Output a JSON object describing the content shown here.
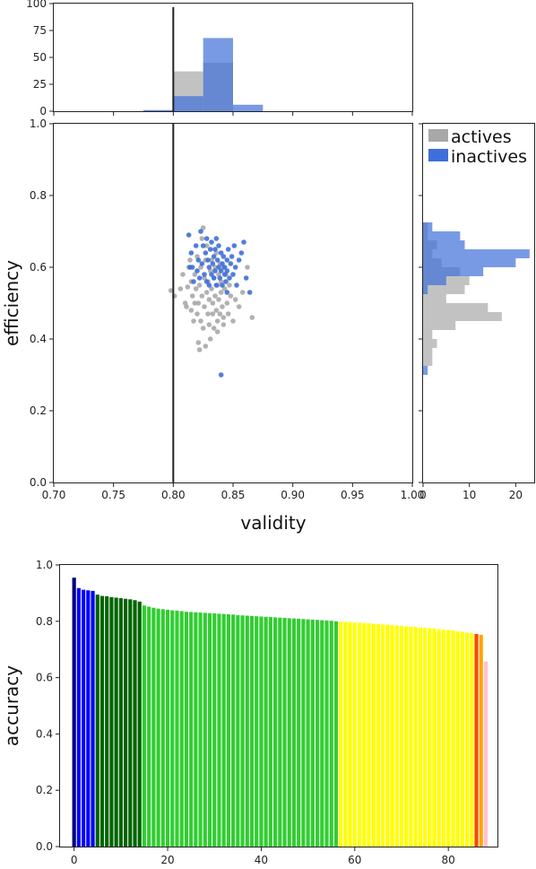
{
  "chart_data": [
    {
      "panel": "joint-scatter",
      "type": "scatter",
      "xlabel": "validity",
      "ylabel": "efficiency",
      "xlim": [
        0.7,
        1.0
      ],
      "ylim": [
        0.0,
        1.0
      ],
      "xticks": [
        "0.70",
        "0.75",
        "0.80",
        "0.85",
        "0.90",
        "0.95",
        "1.00"
      ],
      "yticks": [
        "0.0",
        "0.2",
        "0.4",
        "0.6",
        "0.8",
        "1.0"
      ],
      "vline_x": 0.8,
      "legend": {
        "placement": "top-right",
        "entries": [
          "actives",
          "inactives"
        ]
      },
      "series": [
        {
          "name": "actives",
          "color": "#a8a8a8",
          "points": [
            [
              0.798,
              0.535
            ],
            [
              0.801,
              0.52
            ],
            [
              0.806,
              0.54
            ],
            [
              0.808,
              0.58
            ],
            [
              0.81,
              0.5
            ],
            [
              0.811,
              0.49
            ],
            [
              0.812,
              0.545
            ],
            [
              0.813,
              0.6
            ],
            [
              0.814,
              0.62
            ],
            [
              0.815,
              0.48
            ],
            [
              0.815,
              0.56
            ],
            [
              0.816,
              0.52
            ],
            [
              0.817,
              0.45
            ],
            [
              0.818,
              0.5
            ],
            [
              0.818,
              0.58
            ],
            [
              0.819,
              0.54
            ],
            [
              0.82,
              0.63
            ],
            [
              0.82,
              0.47
            ],
            [
              0.821,
              0.39
            ],
            [
              0.821,
              0.5
            ],
            [
              0.822,
              0.37
            ],
            [
              0.822,
              0.55
            ],
            [
              0.823,
              0.45
            ],
            [
              0.823,
              0.6
            ],
            [
              0.824,
              0.52
            ],
            [
              0.824,
              0.68
            ],
            [
              0.825,
              0.71
            ],
            [
              0.825,
              0.43
            ],
            [
              0.826,
              0.57
            ],
            [
              0.826,
              0.49
            ],
            [
              0.827,
              0.62
            ],
            [
              0.827,
              0.38
            ],
            [
              0.828,
              0.53
            ],
            [
              0.828,
              0.66
            ],
            [
              0.829,
              0.47
            ],
            [
              0.829,
              0.56
            ],
            [
              0.83,
              0.44
            ],
            [
              0.83,
              0.51
            ],
            [
              0.831,
              0.59
            ],
            [
              0.831,
              0.4
            ],
            [
              0.832,
              0.54
            ],
            [
              0.832,
              0.62
            ],
            [
              0.833,
              0.47
            ],
            [
              0.833,
              0.5
            ],
            [
              0.834,
              0.57
            ],
            [
              0.834,
              0.43
            ],
            [
              0.835,
              0.6
            ],
            [
              0.835,
              0.52
            ],
            [
              0.836,
              0.48
            ],
            [
              0.836,
              0.64
            ],
            [
              0.837,
              0.55
            ],
            [
              0.837,
              0.45
            ],
            [
              0.838,
              0.58
            ],
            [
              0.838,
              0.51
            ],
            [
              0.839,
              0.61
            ],
            [
              0.839,
              0.47
            ],
            [
              0.84,
              0.53
            ],
            [
              0.84,
              0.56
            ],
            [
              0.841,
              0.49
            ],
            [
              0.842,
              0.6
            ],
            [
              0.842,
              0.46
            ],
            [
              0.843,
              0.54
            ],
            [
              0.844,
              0.58
            ],
            [
              0.845,
              0.5
            ],
            [
              0.846,
              0.47
            ],
            [
              0.847,
              0.55
            ],
            [
              0.848,
              0.52
            ],
            [
              0.85,
              0.45
            ],
            [
              0.852,
              0.51
            ],
            [
              0.855,
              0.49
            ],
            [
              0.858,
              0.53
            ],
            [
              0.862,
              0.6
            ],
            [
              0.866,
              0.46
            ],
            [
              0.842,
              0.44
            ],
            [
              0.837,
              0.42
            ]
          ]
        },
        {
          "name": "inactives",
          "color": "#3f6fd8",
          "points": [
            [
              0.813,
              0.69
            ],
            [
              0.814,
              0.6
            ],
            [
              0.815,
              0.64
            ],
            [
              0.816,
              0.6
            ],
            [
              0.817,
              0.56
            ],
            [
              0.819,
              0.66
            ],
            [
              0.82,
              0.59
            ],
            [
              0.821,
              0.62
            ],
            [
              0.822,
              0.57
            ],
            [
              0.823,
              0.7
            ],
            [
              0.824,
              0.61
            ],
            [
              0.825,
              0.66
            ],
            [
              0.826,
              0.58
            ],
            [
              0.827,
              0.64
            ],
            [
              0.828,
              0.68
            ],
            [
              0.828,
              0.56
            ],
            [
              0.829,
              0.62
            ],
            [
              0.83,
              0.6
            ],
            [
              0.831,
              0.65
            ],
            [
              0.832,
              0.58
            ],
            [
              0.832,
              0.67
            ],
            [
              0.833,
              0.61
            ],
            [
              0.834,
              0.57
            ],
            [
              0.834,
              0.63
            ],
            [
              0.835,
              0.59
            ],
            [
              0.836,
              0.68
            ],
            [
              0.836,
              0.55
            ],
            [
              0.837,
              0.62
            ],
            [
              0.838,
              0.6
            ],
            [
              0.838,
              0.66
            ],
            [
              0.839,
              0.57
            ],
            [
              0.84,
              0.64
            ],
            [
              0.84,
              0.59
            ],
            [
              0.841,
              0.61
            ],
            [
              0.841,
              0.55
            ],
            [
              0.842,
              0.63
            ],
            [
              0.843,
              0.58
            ],
            [
              0.843,
              0.6
            ],
            [
              0.844,
              0.56
            ],
            [
              0.845,
              0.62
            ],
            [
              0.845,
              0.59
            ],
            [
              0.846,
              0.65
            ],
            [
              0.847,
              0.57
            ],
            [
              0.848,
              0.61
            ],
            [
              0.849,
              0.63
            ],
            [
              0.85,
              0.58
            ],
            [
              0.851,
              0.66
            ],
            [
              0.852,
              0.6
            ],
            [
              0.853,
              0.55
            ],
            [
              0.855,
              0.62
            ],
            [
              0.857,
              0.64
            ],
            [
              0.859,
              0.67
            ],
            [
              0.861,
              0.57
            ],
            [
              0.864,
              0.53
            ],
            [
              0.845,
              0.53
            ],
            [
              0.84,
              0.3
            ],
            [
              0.835,
              0.65
            ],
            [
              0.83,
              0.55
            ]
          ]
        }
      ]
    },
    {
      "panel": "top-histogram",
      "type": "bar",
      "xlim": [
        0.7,
        1.0
      ],
      "ylim": [
        0,
        100
      ],
      "yticks": [
        "0",
        "25",
        "50",
        "75",
        "100"
      ],
      "bin_edges": [
        0.775,
        0.8,
        0.825,
        0.85,
        0.875
      ],
      "series": [
        {
          "name": "actives",
          "color": "#a8a8a8",
          "values": [
            1,
            37,
            45,
            0
          ]
        },
        {
          "name": "inactives",
          "color": "#3f6fd8",
          "values": [
            1,
            14,
            68,
            6
          ]
        }
      ]
    },
    {
      "panel": "right-histogram",
      "type": "bar",
      "orientation": "horizontal",
      "ylim": [
        0.0,
        1.0
      ],
      "xlim": [
        0,
        24
      ],
      "xticks": [
        "0",
        "10",
        "20"
      ],
      "bin_edges": [
        0.3,
        0.325,
        0.35,
        0.375,
        0.4,
        0.425,
        0.45,
        0.475,
        0.5,
        0.525,
        0.55,
        0.575,
        0.6,
        0.625,
        0.65,
        0.675,
        0.7,
        0.725
      ],
      "series": [
        {
          "name": "actives",
          "color": "#a8a8a8",
          "values": [
            0,
            2,
            2,
            3,
            2,
            7,
            17,
            14,
            5,
            9,
            10,
            8,
            4,
            2,
            3,
            1,
            1
          ]
        },
        {
          "name": "inactives",
          "color": "#3f6fd8",
          "values": [
            1,
            0,
            0,
            0,
            0,
            0,
            0,
            0,
            0,
            1,
            5,
            13,
            20,
            23,
            9,
            8,
            2
          ]
        }
      ]
    },
    {
      "panel": "accuracy-bars",
      "type": "bar",
      "ylabel": "accuracy",
      "xlim": [
        -3,
        90.5
      ],
      "ylim": [
        0.0,
        1.0
      ],
      "xticks": [
        "0",
        "20",
        "40",
        "60",
        "80"
      ],
      "yticks": [
        "0.0",
        "0.2",
        "0.4",
        "0.6",
        "0.8",
        "1.0"
      ],
      "group_colors": [
        "#000080",
        "#0000ff",
        "#006400",
        "#32cd32",
        "#ffff00",
        "#ff4500",
        "#ffa500",
        "#ffc0cb"
      ],
      "groups": [
        0,
        1,
        1,
        1,
        1,
        2,
        2,
        2,
        2,
        2,
        2,
        2,
        2,
        2,
        2,
        3,
        3,
        3,
        3,
        3,
        3,
        3,
        3,
        3,
        3,
        3,
        3,
        3,
        3,
        3,
        3,
        3,
        3,
        3,
        3,
        3,
        3,
        3,
        3,
        3,
        3,
        3,
        3,
        3,
        3,
        3,
        3,
        3,
        3,
        3,
        3,
        3,
        3,
        3,
        3,
        3,
        3,
        4,
        4,
        4,
        4,
        4,
        4,
        4,
        4,
        4,
        4,
        4,
        4,
        4,
        4,
        4,
        4,
        4,
        4,
        4,
        4,
        4,
        4,
        4,
        4,
        4,
        4,
        4,
        4,
        4,
        5,
        6,
        7
      ],
      "values": [
        0.955,
        0.918,
        0.912,
        0.91,
        0.908,
        0.895,
        0.89,
        0.889,
        0.886,
        0.884,
        0.882,
        0.88,
        0.878,
        0.875,
        0.87,
        0.856,
        0.852,
        0.848,
        0.845,
        0.843,
        0.841,
        0.839,
        0.838,
        0.836,
        0.834,
        0.833,
        0.832,
        0.831,
        0.83,
        0.829,
        0.828,
        0.827,
        0.826,
        0.825,
        0.824,
        0.822,
        0.821,
        0.82,
        0.819,
        0.818,
        0.817,
        0.816,
        0.815,
        0.814,
        0.813,
        0.812,
        0.811,
        0.81,
        0.809,
        0.808,
        0.807,
        0.806,
        0.805,
        0.804,
        0.803,
        0.802,
        0.8,
        0.799,
        0.798,
        0.797,
        0.796,
        0.795,
        0.794,
        0.793,
        0.791,
        0.79,
        0.789,
        0.788,
        0.786,
        0.785,
        0.784,
        0.782,
        0.781,
        0.78,
        0.778,
        0.777,
        0.775,
        0.774,
        0.772,
        0.77,
        0.769,
        0.767,
        0.765,
        0.763,
        0.76,
        0.758,
        0.755,
        0.752,
        0.657
      ]
    }
  ]
}
